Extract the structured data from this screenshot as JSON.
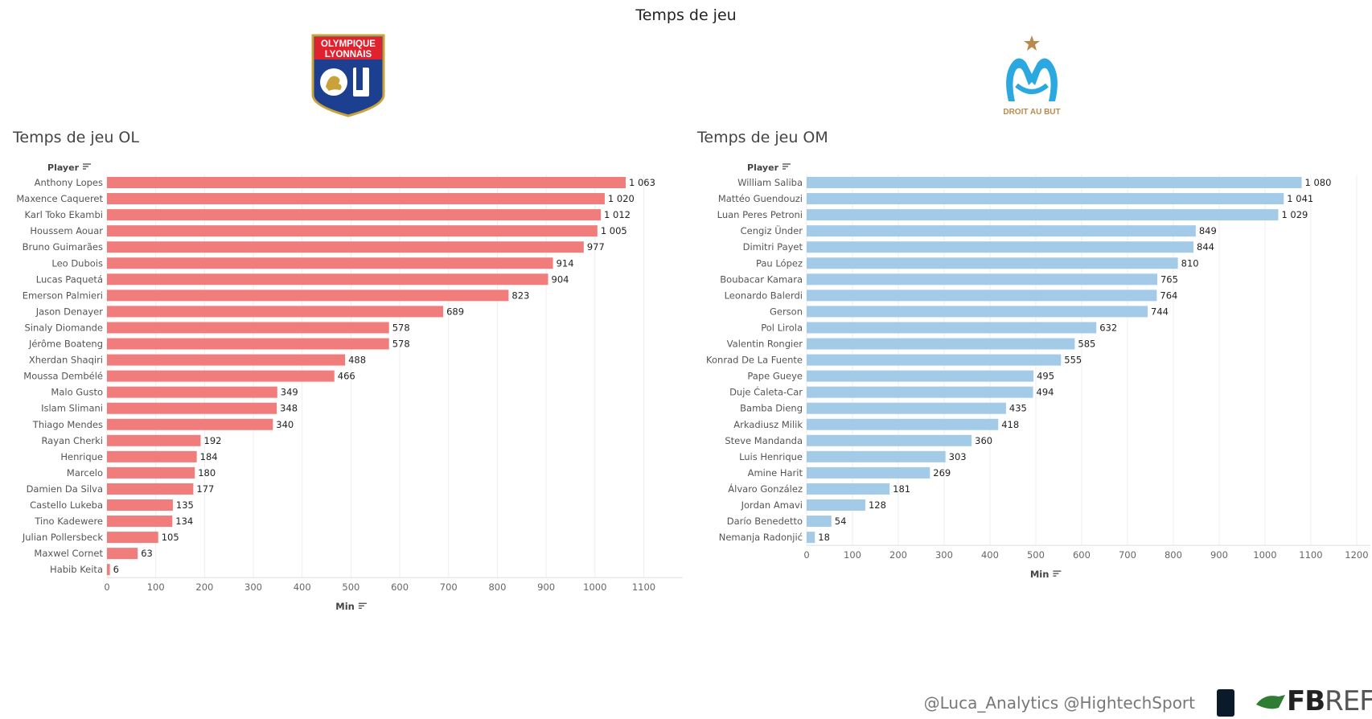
{
  "page_title": "Temps de jeu",
  "logos": {
    "ol": {
      "text_line1": "OLYMPIQUE",
      "text_line2": "LYONNAIS"
    },
    "om": {
      "motto": "DROIT AU BUT"
    }
  },
  "colors": {
    "ol_bar": "#f07c7c",
    "om_bar": "#a3cbe8",
    "text": "#555555",
    "grid": "#eeeeee"
  },
  "chart_data": [
    {
      "type": "bar",
      "title": "Temps de jeu OL",
      "orientation": "horizontal",
      "row_header": "Player",
      "xlabel": "Min",
      "xlim": [
        0,
        1180
      ],
      "xticks": [
        0,
        100,
        200,
        300,
        400,
        500,
        600,
        700,
        800,
        900,
        1000,
        1100
      ],
      "grid": true,
      "categories": [
        "Anthony Lopes",
        "Maxence Caqueret",
        "Karl Toko Ekambi",
        "Houssem Aouar",
        "Bruno Guimarães",
        "Leo Dubois",
        "Lucas Paquetá",
        "Emerson Palmieri",
        "Jason Denayer",
        "Sinaly Diomande",
        "Jérôme Boateng",
        "Xherdan Shaqiri",
        "Moussa Dembélé",
        "Malo Gusto",
        "Islam Slimani",
        "Thiago Mendes",
        "Rayan Cherki",
        "Henrique",
        "Marcelo",
        "Damien Da Silva",
        "Castello Lukeba",
        "Tino Kadewere",
        "Julian Pollersbeck",
        "Maxwel Cornet",
        "Habib Keita"
      ],
      "values": [
        1063,
        1020,
        1012,
        1005,
        977,
        914,
        904,
        823,
        689,
        578,
        578,
        488,
        466,
        349,
        348,
        340,
        192,
        184,
        180,
        177,
        135,
        134,
        105,
        63,
        6
      ],
      "labels": [
        "1 063",
        "1 020",
        "1 012",
        "1 005",
        "977",
        "914",
        "904",
        "823",
        "689",
        "578",
        "578",
        "488",
        "466",
        "349",
        "348",
        "340",
        "192",
        "184",
        "180",
        "177",
        "135",
        "134",
        "105",
        "63",
        "6"
      ]
    },
    {
      "type": "bar",
      "title": "Temps de jeu OM",
      "orientation": "horizontal",
      "row_header": "Player",
      "xlabel": "Min",
      "xlim": [
        0,
        1230
      ],
      "xticks": [
        0,
        100,
        200,
        300,
        400,
        500,
        600,
        700,
        800,
        900,
        1000,
        1100,
        1200
      ],
      "grid": true,
      "categories": [
        "William Saliba",
        "Mattéo Guendouzi",
        "Luan Peres Petroni",
        "Cengiz Ünder",
        "Dimitri Payet",
        "Pau López",
        "Boubacar Kamara",
        "Leonardo Balerdi",
        "Gerson",
        "Pol Lirola",
        "Valentin Rongier",
        "Konrad De La Fuente",
        "Pape Gueye",
        "Duje Ćaleta-Car",
        "Bamba Dieng",
        "Arkadiusz Milik",
        "Steve Mandanda",
        "Luis Henrique",
        "Amine Harit",
        "Álvaro González",
        "Jordan Amavi",
        "Darío Benedetto",
        "Nemanja Radonjić"
      ],
      "values": [
        1080,
        1041,
        1029,
        849,
        844,
        810,
        765,
        764,
        744,
        632,
        585,
        555,
        495,
        494,
        435,
        418,
        360,
        303,
        269,
        181,
        128,
        54,
        18
      ],
      "labels": [
        "1 080",
        "1 041",
        "1 029",
        "849",
        "844",
        "810",
        "765",
        "764",
        "744",
        "632",
        "585",
        "555",
        "495",
        "494",
        "435",
        "418",
        "360",
        "303",
        "269",
        "181",
        "128",
        "54",
        "18"
      ]
    }
  ],
  "footer": {
    "credits": "@Luca_Analytics @HightechSport",
    "fbref_part1": "FB",
    "fbref_part2": "REF"
  }
}
